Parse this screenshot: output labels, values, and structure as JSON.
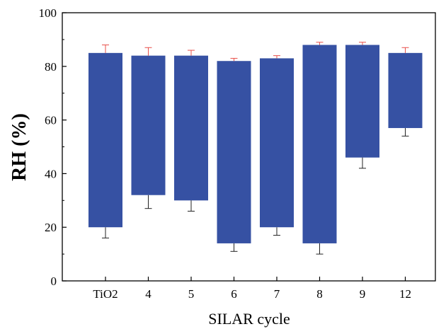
{
  "chart_data": {
    "type": "bar",
    "subtype": "floating-range",
    "categories": [
      "TiO2",
      "4",
      "5",
      "6",
      "7",
      "8",
      "9",
      "12"
    ],
    "series": [
      {
        "low": [
          20,
          32,
          30,
          14,
          20,
          14,
          46,
          57
        ],
        "high": [
          85,
          84,
          84,
          82,
          83,
          88,
          88,
          85
        ],
        "low_error": [
          4,
          5,
          4,
          3,
          3,
          4,
          4,
          3
        ],
        "high_error": [
          3,
          3,
          2,
          1,
          1,
          1,
          1,
          2
        ]
      }
    ],
    "title": "",
    "xlabel": "SILAR cycle",
    "ylabel": "RH (%)",
    "ylim": [
      0,
      100
    ],
    "yticks": [
      0,
      20,
      40,
      60,
      80,
      100
    ],
    "grid": false,
    "legend": "none",
    "colors": {
      "bar": "#3651a3",
      "upper_error": "#e8504a",
      "lower_error": "#222222",
      "axis": "#000000"
    }
  }
}
